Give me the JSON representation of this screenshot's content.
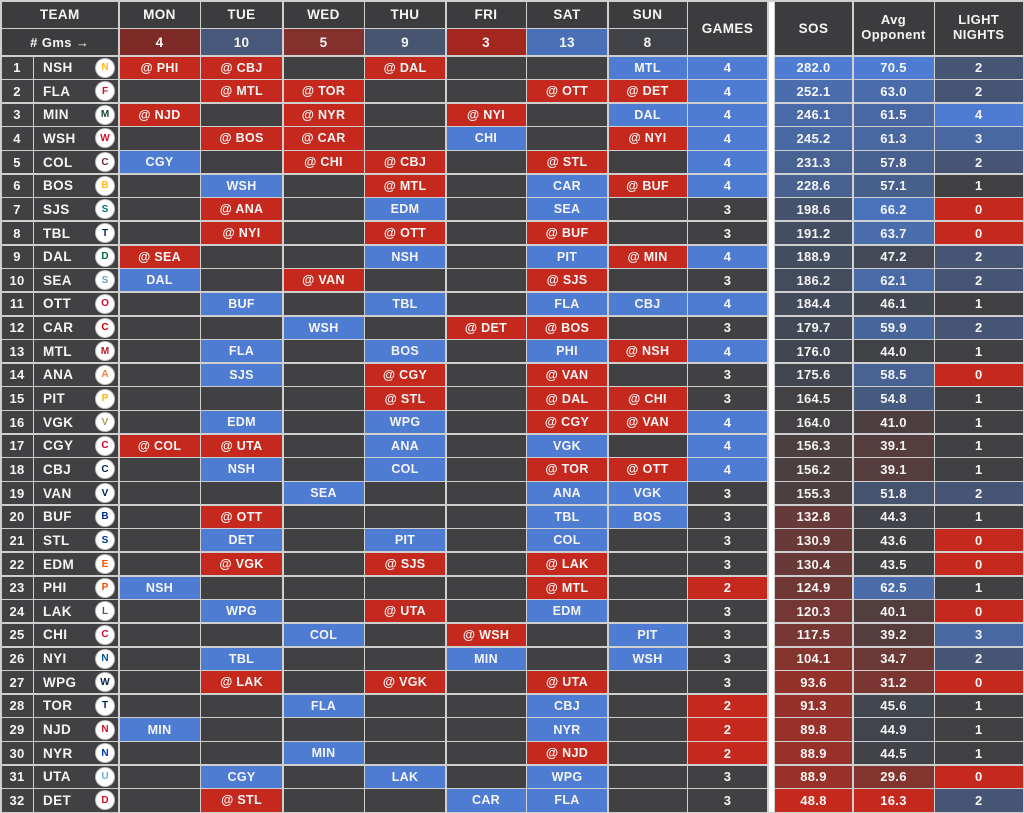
{
  "header": {
    "team_label": "TEAM",
    "gms_label": "# Gms →",
    "games_label": "GAMES",
    "sos_label": "SOS",
    "avg_line1": "Avg",
    "avg_line2": "Opponent",
    "light_line1": "LIGHT",
    "light_line2": "NIGHTS"
  },
  "colors": {
    "header_bg": "#3c3c3e",
    "cell_bg": "#414143",
    "away_red": "#c5281c",
    "home_blue": "#4d7cd2",
    "scale_red": "#c5281c",
    "scale_gray": "#414143",
    "scale_blue": "#4d7cd2",
    "grid_line": "#cfcfcf",
    "divider": "#ffffff",
    "text": "#f5f5f5"
  },
  "scales": {
    "games": {
      "min": 2,
      "mid": 3,
      "max": 4
    },
    "sos": {
      "min": 48.8,
      "mid": 165.4,
      "max": 282.0
    },
    "avg_opponent": {
      "min": 16.3,
      "mid": 43.4,
      "max": 70.5
    },
    "light_nights": {
      "min": 0,
      "mid": 1,
      "max": 4
    }
  },
  "chart_data": {
    "type": "table",
    "columns": [
      "TEAM",
      "MON",
      "TUE",
      "WED",
      "THU",
      "FRI",
      "SAT",
      "SUN",
      "GAMES",
      "SOS",
      "Avg Opponent",
      "LIGHT NIGHTS"
    ],
    "days": [
      {
        "label": "MON",
        "count": "4",
        "count_color": "#7d2a27"
      },
      {
        "label": "TUE",
        "count": "10",
        "count_color": "#48587a"
      },
      {
        "label": "WED",
        "count": "5",
        "count_color": "#84302c"
      },
      {
        "label": "THU",
        "count": "9",
        "count_color": "#475571"
      },
      {
        "label": "FRI",
        "count": "3",
        "count_color": "#a3261f"
      },
      {
        "label": "SAT",
        "count": "13",
        "count_color": "#4a71b8"
      },
      {
        "label": "SUN",
        "count": "8",
        "count_color": "#414348"
      }
    ],
    "teams": [
      {
        "rank": 1,
        "abbr": "NSH",
        "logo_color": "#FFB81C",
        "schedule": {
          "mon": "@ PHI",
          "tue": "@ CBJ",
          "thu": "@ DAL",
          "sun": "MTL"
        },
        "games": 4,
        "sos": "282.0",
        "avg_opponent": "70.5",
        "light_nights": 2
      },
      {
        "rank": 2,
        "abbr": "FLA",
        "logo_color": "#C8102E",
        "schedule": {
          "tue": "@ MTL",
          "wed": "@ TOR",
          "sat": "@ OTT",
          "sun": "@ DET"
        },
        "games": 4,
        "sos": "252.1",
        "avg_opponent": "63.0",
        "light_nights": 2
      },
      {
        "rank": 3,
        "abbr": "MIN",
        "logo_color": "#154734",
        "schedule": {
          "mon": "@ NJD",
          "wed": "@ NYR",
          "fri": "@ NYI",
          "sun": "DAL"
        },
        "games": 4,
        "sos": "246.1",
        "avg_opponent": "61.5",
        "light_nights": 4
      },
      {
        "rank": 4,
        "abbr": "WSH",
        "logo_color": "#C8102E",
        "schedule": {
          "tue": "@ BOS",
          "wed": "@ CAR",
          "fri": "CHI",
          "sun": "@ NYI"
        },
        "games": 4,
        "sos": "245.2",
        "avg_opponent": "61.3",
        "light_nights": 3
      },
      {
        "rank": 5,
        "abbr": "COL",
        "logo_color": "#6F263D",
        "schedule": {
          "mon": "CGY",
          "wed": "@ CHI",
          "thu": "@ CBJ",
          "sat": "@ STL"
        },
        "games": 4,
        "sos": "231.3",
        "avg_opponent": "57.8",
        "light_nights": 2
      },
      {
        "rank": 6,
        "abbr": "BOS",
        "logo_color": "#FFB81C",
        "schedule": {
          "tue": "WSH",
          "thu": "@ MTL",
          "sat": "CAR",
          "sun": "@ BUF"
        },
        "games": 4,
        "sos": "228.6",
        "avg_opponent": "57.1",
        "light_nights": 1
      },
      {
        "rank": 7,
        "abbr": "SJS",
        "logo_color": "#006D75",
        "schedule": {
          "tue": "@ ANA",
          "thu": "EDM",
          "sat": "SEA"
        },
        "games": 3,
        "sos": "198.6",
        "avg_opponent": "66.2",
        "light_nights": 0
      },
      {
        "rank": 8,
        "abbr": "TBL",
        "logo_color": "#00205B",
        "schedule": {
          "tue": "@ NYI",
          "thu": "@ OTT",
          "sat": "@ BUF"
        },
        "games": 3,
        "sos": "191.2",
        "avg_opponent": "63.7",
        "light_nights": 0
      },
      {
        "rank": 9,
        "abbr": "DAL",
        "logo_color": "#006847",
        "schedule": {
          "mon": "@ SEA",
          "thu": "NSH",
          "sat": "PIT",
          "sun": "@ MIN"
        },
        "games": 4,
        "sos": "188.9",
        "avg_opponent": "47.2",
        "light_nights": 2
      },
      {
        "rank": 10,
        "abbr": "SEA",
        "logo_color": "#68A2B9",
        "schedule": {
          "mon": "DAL",
          "wed": "@ VAN",
          "sat": "@ SJS"
        },
        "games": 3,
        "sos": "186.2",
        "avg_opponent": "62.1",
        "light_nights": 2
      },
      {
        "rank": 11,
        "abbr": "OTT",
        "logo_color": "#C8102E",
        "schedule": {
          "tue": "BUF",
          "thu": "TBL",
          "sat": "FLA",
          "sun": "CBJ"
        },
        "games": 4,
        "sos": "184.4",
        "avg_opponent": "46.1",
        "light_nights": 1
      },
      {
        "rank": 12,
        "abbr": "CAR",
        "logo_color": "#CC0000",
        "schedule": {
          "wed": "WSH",
          "fri": "@ DET",
          "sat": "@ BOS"
        },
        "games": 3,
        "sos": "179.7",
        "avg_opponent": "59.9",
        "light_nights": 2
      },
      {
        "rank": 13,
        "abbr": "MTL",
        "logo_color": "#AF1E2D",
        "schedule": {
          "tue": "FLA",
          "thu": "BOS",
          "sat": "PHI",
          "sun": "@ NSH"
        },
        "games": 4,
        "sos": "176.0",
        "avg_opponent": "44.0",
        "light_nights": 1
      },
      {
        "rank": 14,
        "abbr": "ANA",
        "logo_color": "#F47A38",
        "schedule": {
          "tue": "SJS",
          "thu": "@ CGY",
          "sat": "@ VAN"
        },
        "games": 3,
        "sos": "175.6",
        "avg_opponent": "58.5",
        "light_nights": 0
      },
      {
        "rank": 15,
        "abbr": "PIT",
        "logo_color": "#FCB514",
        "schedule": {
          "thu": "@ STL",
          "sat": "@ DAL",
          "sun": "@ CHI"
        },
        "games": 3,
        "sos": "164.5",
        "avg_opponent": "54.8",
        "light_nights": 1
      },
      {
        "rank": 16,
        "abbr": "VGK",
        "logo_color": "#B4975A",
        "schedule": {
          "tue": "EDM",
          "thu": "WPG",
          "sat": "@ CGY",
          "sun": "@ VAN"
        },
        "games": 4,
        "sos": "164.0",
        "avg_opponent": "41.0",
        "light_nights": 1
      },
      {
        "rank": 17,
        "abbr": "CGY",
        "logo_color": "#D2001C",
        "schedule": {
          "mon": "@ COL",
          "tue": "@ UTA",
          "thu": "ANA",
          "sat": "VGK"
        },
        "games": 4,
        "sos": "156.3",
        "avg_opponent": "39.1",
        "light_nights": 1
      },
      {
        "rank": 18,
        "abbr": "CBJ",
        "logo_color": "#002654",
        "schedule": {
          "tue": "NSH",
          "thu": "COL",
          "sat": "@ TOR",
          "sun": "@ OTT"
        },
        "games": 4,
        "sos": "156.2",
        "avg_opponent": "39.1",
        "light_nights": 1
      },
      {
        "rank": 19,
        "abbr": "VAN",
        "logo_color": "#00205B",
        "schedule": {
          "wed": "SEA",
          "sat": "ANA",
          "sun": "VGK"
        },
        "games": 3,
        "sos": "155.3",
        "avg_opponent": "51.8",
        "light_nights": 2
      },
      {
        "rank": 20,
        "abbr": "BUF",
        "logo_color": "#003087",
        "schedule": {
          "tue": "@ OTT",
          "sat": "TBL",
          "sun": "BOS"
        },
        "games": 3,
        "sos": "132.8",
        "avg_opponent": "44.3",
        "light_nights": 1
      },
      {
        "rank": 21,
        "abbr": "STL",
        "logo_color": "#002F87",
        "schedule": {
          "tue": "DET",
          "thu": "PIT",
          "sat": "COL"
        },
        "games": 3,
        "sos": "130.9",
        "avg_opponent": "43.6",
        "light_nights": 0
      },
      {
        "rank": 22,
        "abbr": "EDM",
        "logo_color": "#FF4C00",
        "schedule": {
          "tue": "@ VGK",
          "thu": "@ SJS",
          "sat": "@ LAK"
        },
        "games": 3,
        "sos": "130.4",
        "avg_opponent": "43.5",
        "light_nights": 0
      },
      {
        "rank": 23,
        "abbr": "PHI",
        "logo_color": "#F74902",
        "schedule": {
          "mon": "NSH",
          "sat": "@ MTL"
        },
        "games": 2,
        "sos": "124.9",
        "avg_opponent": "62.5",
        "light_nights": 1
      },
      {
        "rank": 24,
        "abbr": "LAK",
        "logo_color": "#53565A",
        "schedule": {
          "tue": "WPG",
          "thu": "@ UTA",
          "sat": "EDM"
        },
        "games": 3,
        "sos": "120.3",
        "avg_opponent": "40.1",
        "light_nights": 0
      },
      {
        "rank": 25,
        "abbr": "CHI",
        "logo_color": "#CF0A2C",
        "schedule": {
          "wed": "COL",
          "fri": "@ WSH",
          "sun": "PIT"
        },
        "games": 3,
        "sos": "117.5",
        "avg_opponent": "39.2",
        "light_nights": 3
      },
      {
        "rank": 26,
        "abbr": "NYI",
        "logo_color": "#00539B",
        "schedule": {
          "tue": "TBL",
          "fri": "MIN",
          "sun": "WSH"
        },
        "games": 3,
        "sos": "104.1",
        "avg_opponent": "34.7",
        "light_nights": 2
      },
      {
        "rank": 27,
        "abbr": "WPG",
        "logo_color": "#041E42",
        "schedule": {
          "tue": "@ LAK",
          "thu": "@ VGK",
          "sat": "@ UTA"
        },
        "games": 3,
        "sos": "93.6",
        "avg_opponent": "31.2",
        "light_nights": 0
      },
      {
        "rank": 28,
        "abbr": "TOR",
        "logo_color": "#00205B",
        "schedule": {
          "wed": "FLA",
          "sat": "CBJ"
        },
        "games": 2,
        "sos": "91.3",
        "avg_opponent": "45.6",
        "light_nights": 1
      },
      {
        "rank": 29,
        "abbr": "NJD",
        "logo_color": "#CE1126",
        "schedule": {
          "mon": "MIN",
          "sat": "NYR"
        },
        "games": 2,
        "sos": "89.8",
        "avg_opponent": "44.9",
        "light_nights": 1
      },
      {
        "rank": 30,
        "abbr": "NYR",
        "logo_color": "#0038A8",
        "schedule": {
          "wed": "MIN",
          "sat": "@ NJD"
        },
        "games": 2,
        "sos": "88.9",
        "avg_opponent": "44.5",
        "light_nights": 1
      },
      {
        "rank": 31,
        "abbr": "UTA",
        "logo_color": "#6CACE4",
        "schedule": {
          "tue": "CGY",
          "thu": "LAK",
          "sat": "WPG"
        },
        "games": 3,
        "sos": "88.9",
        "avg_opponent": "29.6",
        "light_nights": 0
      },
      {
        "rank": 32,
        "abbr": "DET",
        "logo_color": "#CE1126",
        "schedule": {
          "tue": "@ STL",
          "fri": "CAR",
          "sat": "FLA"
        },
        "games": 3,
        "sos": "48.8",
        "avg_opponent": "16.3",
        "light_nights": 2
      }
    ]
  }
}
